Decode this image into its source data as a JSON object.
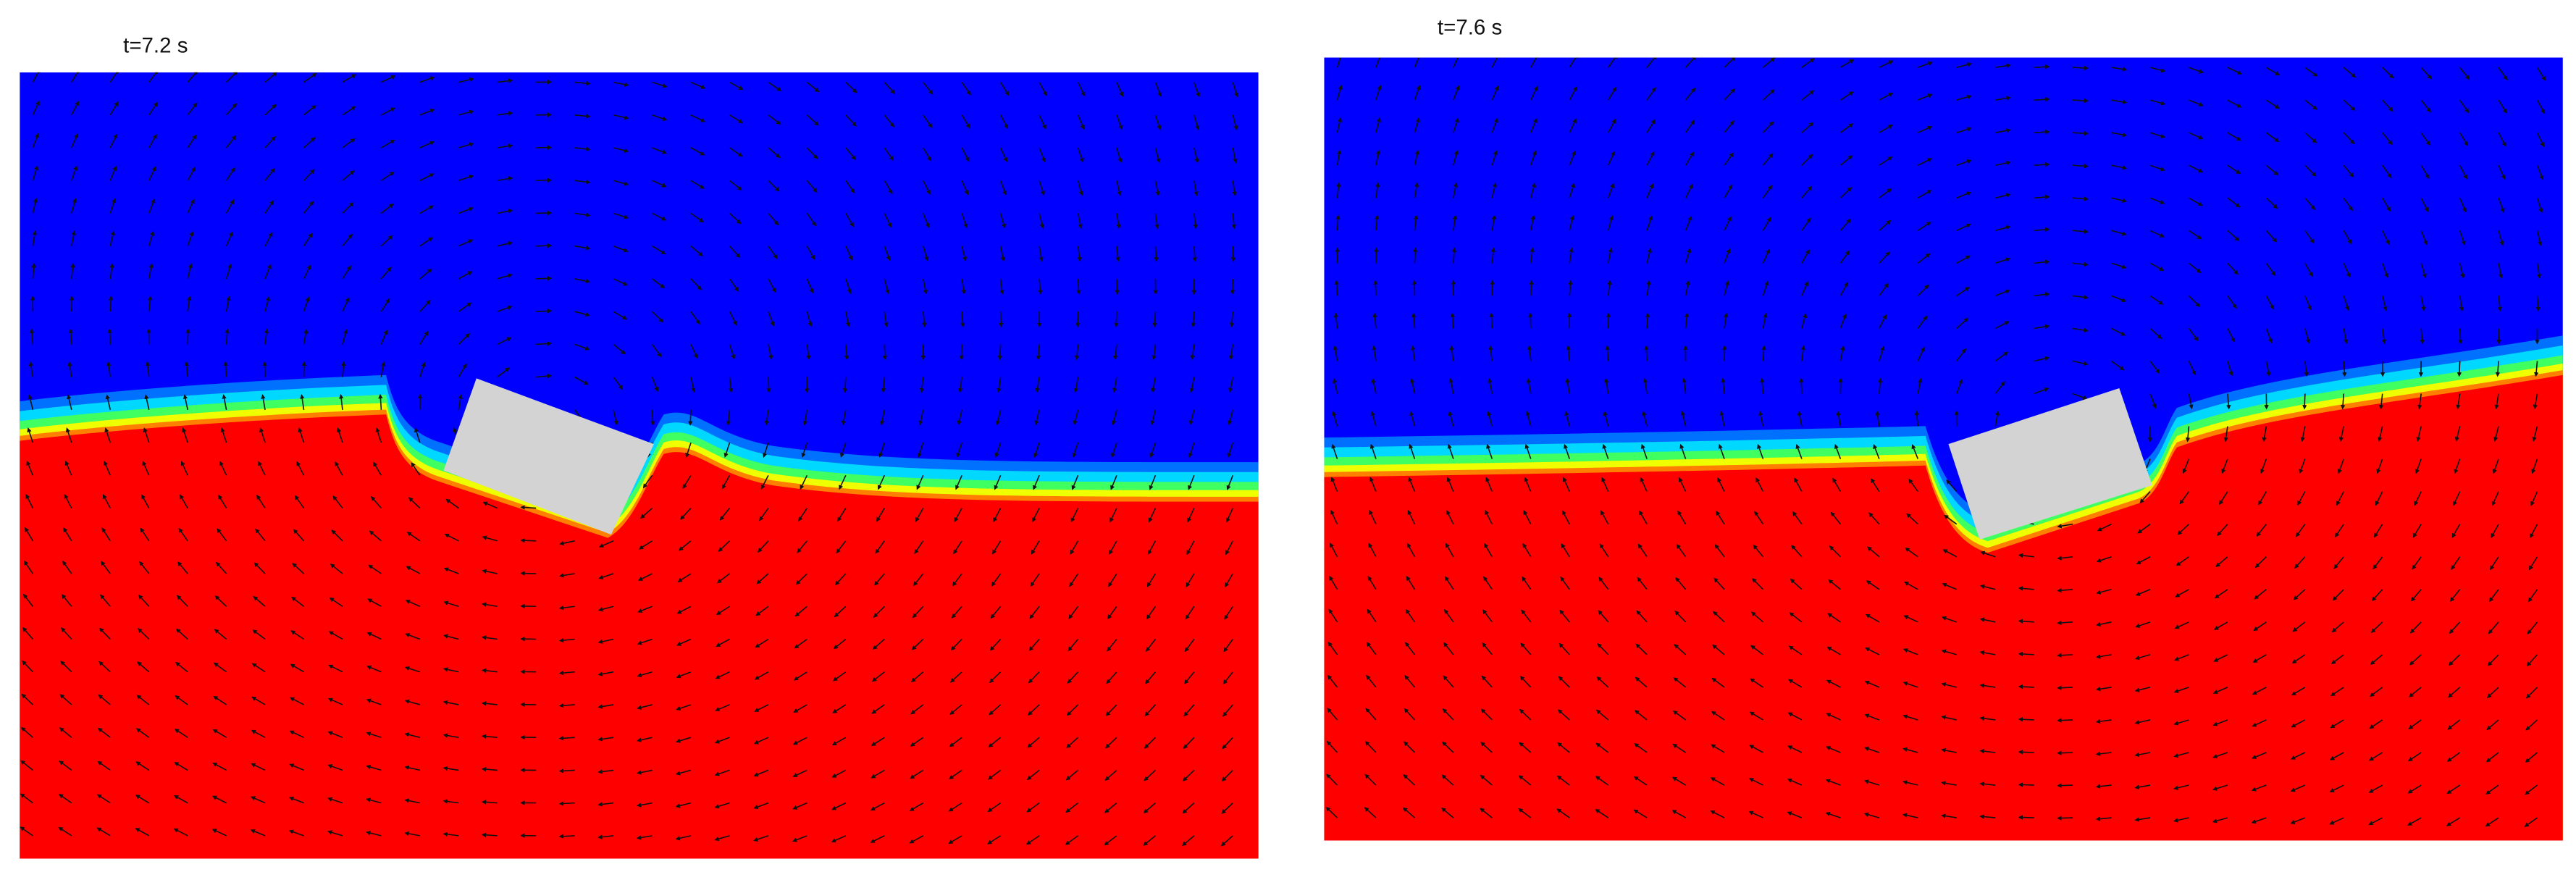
{
  "panels": [
    {
      "label": "t=7.2 s"
    },
    {
      "label": "t=7.6 s"
    }
  ]
}
